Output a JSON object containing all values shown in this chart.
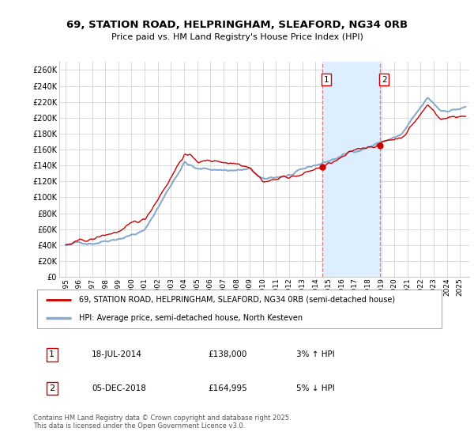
{
  "title1": "69, STATION ROAD, HELPRINGHAM, SLEAFORD, NG34 0RB",
  "title2": "Price paid vs. HM Land Registry's House Price Index (HPI)",
  "ylabel_ticks": [
    "£0",
    "£20K",
    "£40K",
    "£60K",
    "£80K",
    "£100K",
    "£120K",
    "£140K",
    "£160K",
    "£180K",
    "£200K",
    "£220K",
    "£240K",
    "£260K"
  ],
  "ytick_values": [
    0,
    20000,
    40000,
    60000,
    80000,
    100000,
    120000,
    140000,
    160000,
    180000,
    200000,
    220000,
    240000,
    260000
  ],
  "ylim": [
    0,
    270000
  ],
  "xlim_start": 1994.5,
  "xlim_end": 2025.7,
  "xtick_years": [
    1995,
    1996,
    1997,
    1998,
    1999,
    2000,
    2001,
    2002,
    2003,
    2004,
    2005,
    2006,
    2007,
    2008,
    2009,
    2010,
    2011,
    2012,
    2013,
    2014,
    2015,
    2016,
    2017,
    2018,
    2019,
    2020,
    2021,
    2022,
    2023,
    2024,
    2025
  ],
  "marker1_x": 2014.54,
  "marker1_y": 138000,
  "marker1_label": "1",
  "marker1_date": "18-JUL-2014",
  "marker1_price": "£138,000",
  "marker1_hpi": "3% ↑ HPI",
  "marker2_x": 2018.92,
  "marker2_y": 164995,
  "marker2_label": "2",
  "marker2_date": "05-DEC-2018",
  "marker2_price": "£164,995",
  "marker2_hpi": "5% ↓ HPI",
  "shade_start": 2014.54,
  "shade_end": 2018.92,
  "line1_color": "#cc0000",
  "line2_color": "#88aacc",
  "shade_color": "#ddeeff",
  "grid_color": "#cccccc",
  "background_color": "#ffffff",
  "legend1": "69, STATION ROAD, HELPRINGHAM, SLEAFORD, NG34 0RB (semi-detached house)",
  "legend2": "HPI: Average price, semi-detached house, North Kesteven",
  "footer": "Contains HM Land Registry data © Crown copyright and database right 2025.\nThis data is licensed under the Open Government Licence v3.0."
}
